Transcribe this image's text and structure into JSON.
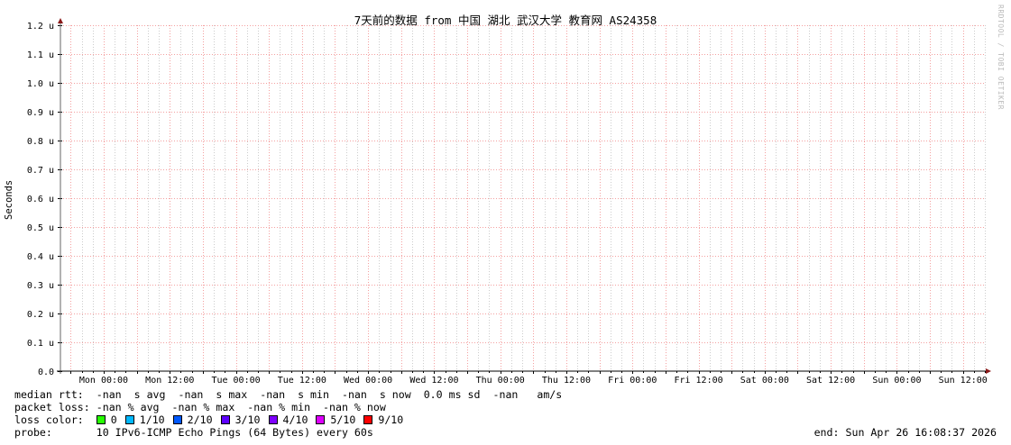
{
  "chart_data": {
    "type": "line",
    "title": "7天前的数据 from  中国 湖北 武汉大学 教育网 AS24358",
    "ylabel": "Seconds",
    "xlabel": "",
    "ylim": [
      0,
      1.2
    ],
    "y_ticks": [
      "0.0",
      "0.1 u",
      "0.2 u",
      "0.3 u",
      "0.4 u",
      "0.5 u",
      "0.6 u",
      "0.7 u",
      "0.8 u",
      "0.9 u",
      "1.0 u",
      "1.1 u",
      "1.2 u"
    ],
    "x_ticks": [
      "Mon 00:00",
      "Mon 12:00",
      "Tue 00:00",
      "Tue 12:00",
      "Wed 00:00",
      "Wed 12:00",
      "Thu 00:00",
      "Thu 12:00",
      "Fri 00:00",
      "Fri 12:00",
      "Sat 00:00",
      "Sat 12:00",
      "Sun 00:00",
      "Sun 12:00"
    ],
    "grid": true,
    "series": [],
    "colors": {
      "major_grid": "#f4a0a0",
      "minor_grid": "#cccccc",
      "axis": "#000000",
      "arrow": "#8b1a1a"
    }
  },
  "watermark": "RRDTOOL / TOBI OETIKER",
  "legend": {
    "median_rtt": "median rtt:  -nan  s avg  -nan  s max  -nan  s min  -nan  s now  0.0 ms sd  -nan   am/s",
    "packet_loss": "packet loss: -nan % avg  -nan % max  -nan % min  -nan % now",
    "loss_color_label": "loss color:  ",
    "loss_colors": [
      {
        "label": "0",
        "color": "#26ff00"
      },
      {
        "label": "1/10",
        "color": "#00b8ff"
      },
      {
        "label": "2/10",
        "color": "#0059ff"
      },
      {
        "label": "3/10",
        "color": "#5e00ff"
      },
      {
        "label": "4/10",
        "color": "#7e00ff"
      },
      {
        "label": "5/10",
        "color": "#dd00ff"
      },
      {
        "label": "9/10",
        "color": "#ff0000"
      }
    ],
    "probe": "probe:       10 IPv6-ICMP Echo Pings (64 Bytes) every 60s",
    "end": "end: Sun Apr 26 16:08:37 2026"
  }
}
